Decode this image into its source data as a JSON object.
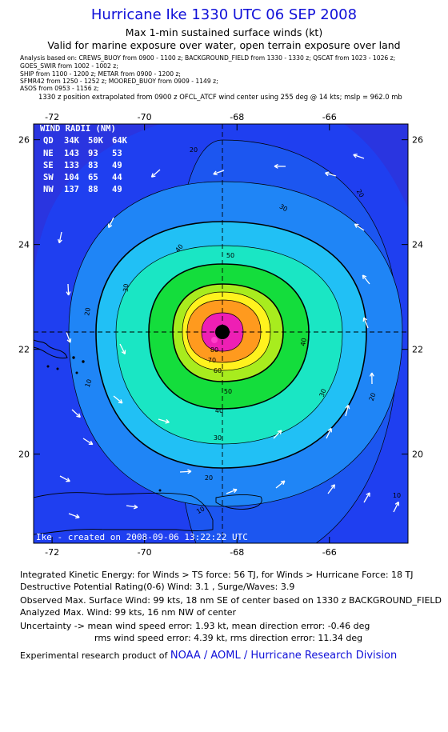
{
  "title": "Hurricane Ike 1330 UTC 06 SEP 2008",
  "subtitle1": "Max 1-min sustained surface winds (kt)",
  "subtitle2": "Valid for marine exposure over water, open terrain exposure over land",
  "analysis_lines": [
    "Analysis based on:  CREWS_BUOY from 0900 - 1100 z;   BACKGROUND_FIELD from 1330 - 1330 z;   QSCAT from 1023 - 1026 z;",
    "GOES_SWIR from 1002 - 1002 z;",
    "SHIP from 1100 - 1200 z;   METAR from 0900 - 1200 z;",
    "SFMR42 from 1250 - 1252 z;   MOORED_BUOY from 0909 - 1149 z;",
    "ASOS from 0953 - 1156 z;"
  ],
  "position_note": "1330 z position extrapolated from 0900 z OFCL_ATCF wind center using 255 deg @ 14 kts;  mslp = 962.0 mb",
  "wind_radii": {
    "header": "WIND RADII (NM)",
    "columns": [
      "QD",
      "34K",
      "50K",
      "64K"
    ],
    "rows": [
      [
        "NE",
        "143",
        "93",
        "53"
      ],
      [
        "SE",
        "133",
        "83",
        "49"
      ],
      [
        "SW",
        "104",
        "65",
        "44"
      ],
      [
        "NW",
        "137",
        "88",
        "49"
      ]
    ]
  },
  "created_label": "Ike - created on 2008-09-06 13:22:22 UTC",
  "chart_data": {
    "type": "heatmap",
    "description_type": "contour map of wind speed",
    "x_ticks": [
      "-72",
      "-70",
      "-68",
      "-66"
    ],
    "y_ticks": [
      "26",
      "24",
      "22",
      "20"
    ],
    "xlim": [
      -72.4,
      -64.3
    ],
    "ylim": [
      18.3,
      26.3
    ],
    "center": {
      "lon": -68.0,
      "lat": 22.15
    },
    "contour_levels_kt": [
      10,
      20,
      30,
      40,
      50,
      60,
      70,
      80,
      90
    ],
    "contour_labels_shown": [
      "10",
      "20",
      "30",
      "40",
      "50",
      "60",
      "70",
      "80"
    ],
    "colors": {
      "lt10": "#1f3ff0",
      "10-20": "#1c56f0",
      "20-30": "#1f85f6",
      "30-40": "#21c0f5",
      "40-50": "#1ae6c4",
      "50-60": "#14dd3c",
      "60-70": "#a8ec1e",
      "70-80": "#fff21e",
      "80-90": "#ff9a1e",
      "90-99": "#ee1fb4"
    }
  },
  "bottom_lines": [
    "Integrated Kinetic Energy:  for Winds > TS force: 56 TJ,  for Winds > Hurricane Force: 18 TJ",
    "Destructive Potential Rating(0-6)   Wind: 3.1 , Surge/Waves: 3.9",
    "Observed Max. Surface Wind: 99 kts, 18 nm SE of center based on 1330 z BACKGROUND_FIELD",
    "Analyzed Max. Wind: 99 kts, 16 nm NW of center",
    "Uncertainty -> mean wind speed error: 1.93 kt,   mean direction error:  -0.46 deg",
    "rms wind speed error: 4.39 kt,   rms direction error: 11.34 deg"
  ],
  "credit_prefix": "Experimental research product of ",
  "credit_org": "NOAA / AOML / Hurricane Research Division"
}
